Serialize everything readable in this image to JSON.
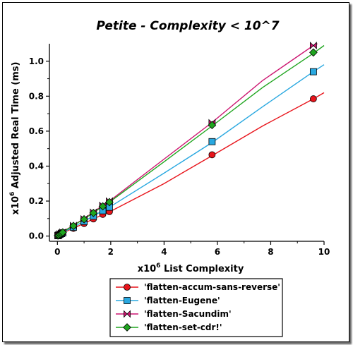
{
  "chart_data": {
    "type": "line",
    "title": "Petite - Complexity < 10^7",
    "xlabel_prefix": "x10",
    "xlabel_exp": "6",
    "xlabel_text": " List Complexity",
    "ylabel_prefix": "x10",
    "ylabel_exp": "6",
    "ylabel_text": " Adjusted Real Time (ms)",
    "xlim": [
      -0.3,
      10
    ],
    "ylim": [
      -0.03,
      1.1
    ],
    "xticks": [
      0,
      2,
      4,
      6,
      8,
      10
    ],
    "yticks": [
      0.0,
      0.2,
      0.4,
      0.6,
      0.8,
      1.0
    ],
    "xtick_labels": [
      "0",
      "2",
      "4",
      "6",
      "8",
      "10"
    ],
    "ytick_labels": [
      "0.0",
      "0.2",
      "0.4",
      "0.6",
      "0.8",
      "1.0"
    ],
    "legend_position": "bottom-center",
    "series": [
      {
        "name": "'flatten-accum-sans-reverse'",
        "color": "#e8141b",
        "marker": "circle",
        "line": {
          "x": [
            0,
            0.2,
            0.6,
            1.0,
            1.35,
            1.7,
            1.95,
            4.0,
            5.8,
            7.7,
            9.6,
            10.0
          ],
          "y": [
            0.0,
            0.018,
            0.045,
            0.072,
            0.098,
            0.122,
            0.138,
            0.3,
            0.46,
            0.63,
            0.785,
            0.82
          ]
        },
        "markers": {
          "x": [
            0.02,
            0.05,
            0.1,
            0.15,
            0.2,
            0.6,
            1.0,
            1.35,
            1.7,
            1.95,
            5.8,
            9.6
          ],
          "y": [
            0.002,
            0.004,
            0.008,
            0.012,
            0.016,
            0.044,
            0.072,
            0.098,
            0.124,
            0.14,
            0.465,
            0.785
          ]
        }
      },
      {
        "name": "'flatten-Eugene'",
        "color": "#29a8e0",
        "marker": "square",
        "line": {
          "x": [
            0,
            0.2,
            0.6,
            1.0,
            1.35,
            1.7,
            1.95,
            4.0,
            5.8,
            7.7,
            9.6,
            10.0
          ],
          "y": [
            0.0,
            0.02,
            0.052,
            0.085,
            0.115,
            0.145,
            0.165,
            0.36,
            0.535,
            0.74,
            0.94,
            0.98
          ]
        },
        "markers": {
          "x": [
            0.02,
            0.05,
            0.1,
            0.15,
            0.2,
            0.6,
            1.0,
            1.35,
            1.7,
            1.95,
            5.8,
            9.6
          ],
          "y": [
            0.002,
            0.005,
            0.01,
            0.014,
            0.018,
            0.05,
            0.084,
            0.114,
            0.145,
            0.165,
            0.54,
            0.94
          ]
        }
      },
      {
        "name": "'flatten-Sacundim'",
        "color": "#cc1570",
        "marker": "bowtie",
        "line": {
          "x": [
            0,
            0.2,
            0.6,
            1.0,
            1.35,
            1.7,
            1.95,
            4.0,
            5.8,
            7.7,
            9.6,
            9.75
          ],
          "y": [
            0.0,
            0.024,
            0.062,
            0.1,
            0.137,
            0.175,
            0.2,
            0.44,
            0.65,
            0.89,
            1.09,
            1.1
          ]
        },
        "markers": {
          "x": [
            0.02,
            0.05,
            0.1,
            0.15,
            0.2,
            0.6,
            1.0,
            1.35,
            1.7,
            1.95,
            5.8,
            9.6
          ],
          "y": [
            0.003,
            0.006,
            0.012,
            0.017,
            0.022,
            0.06,
            0.098,
            0.136,
            0.175,
            0.2,
            0.648,
            1.09
          ]
        }
      },
      {
        "name": "'flatten-set-cdr!'",
        "color": "#1fa51f",
        "marker": "diamond",
        "line": {
          "x": [
            0,
            0.2,
            0.6,
            1.0,
            1.35,
            1.7,
            1.95,
            4.0,
            5.8,
            7.7,
            9.6,
            10.0
          ],
          "y": [
            0.0,
            0.023,
            0.06,
            0.098,
            0.133,
            0.17,
            0.194,
            0.425,
            0.63,
            0.85,
            1.045,
            1.09
          ]
        },
        "markers": {
          "x": [
            0.02,
            0.05,
            0.1,
            0.15,
            0.2,
            0.6,
            1.0,
            1.35,
            1.7,
            1.95,
            5.8,
            9.6
          ],
          "y": [
            0.003,
            0.006,
            0.011,
            0.016,
            0.021,
            0.058,
            0.096,
            0.132,
            0.17,
            0.194,
            0.635,
            1.05
          ]
        }
      }
    ]
  }
}
